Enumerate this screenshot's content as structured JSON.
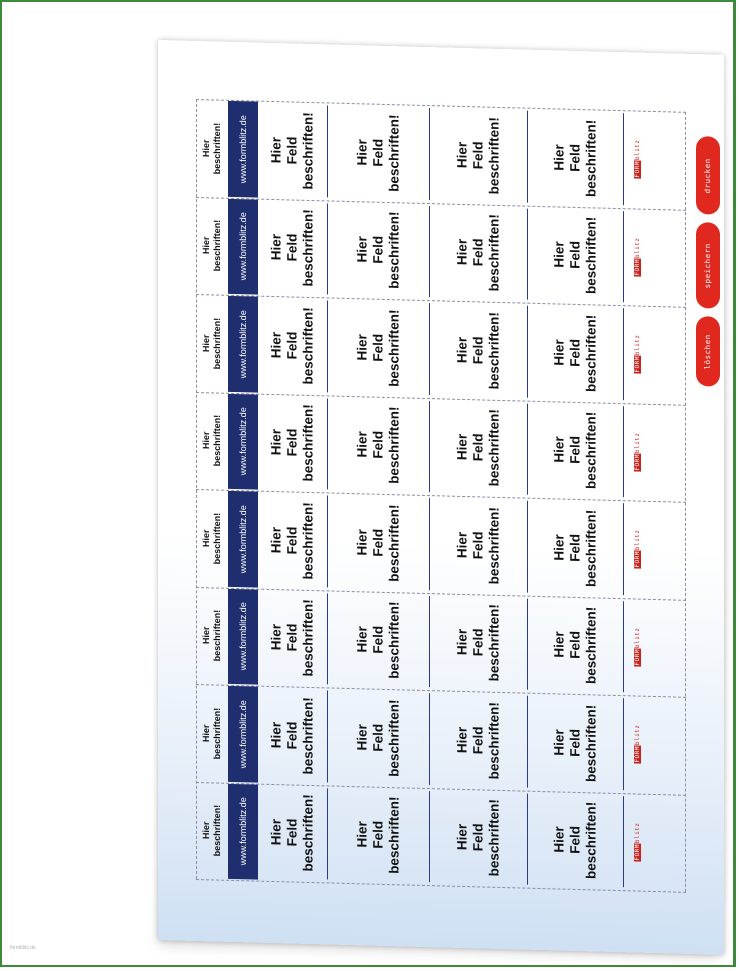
{
  "labels": {
    "header_text": "Hier beschriften!",
    "header_line1": "Hier",
    "header_line2": "beschriften!",
    "url": "www.formblitz.de",
    "field_line1": "Hier",
    "field_line2": "Feld",
    "field_line3": "beschriften!"
  },
  "logo": {
    "part1": "FORM",
    "part2": "blitz"
  },
  "buttons": {
    "delete": "löschen",
    "save": "speichern",
    "print": "drucken"
  },
  "footer": "formblitz.de",
  "colors": {
    "band": "#1f2e6e",
    "button": "#e0281f",
    "frame": "#3c8a3a"
  }
}
